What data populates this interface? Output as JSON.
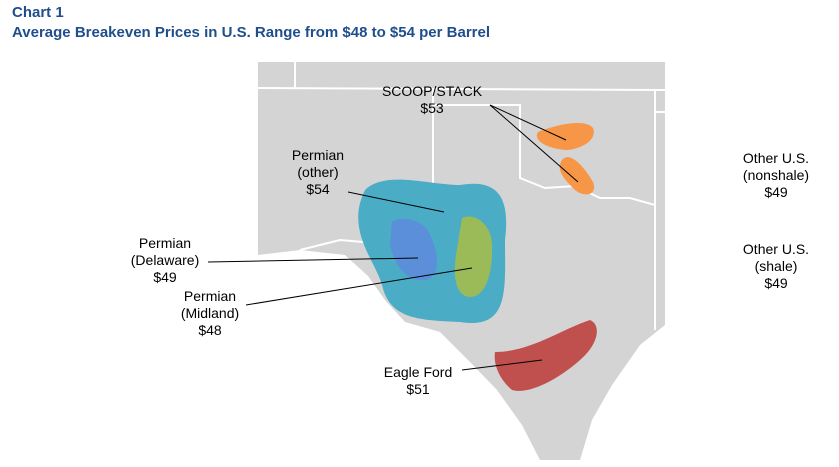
{
  "header": {
    "label": "Chart 1",
    "title": "Average Breakeven Prices in U.S. Range from $48 to $54 per Barrel"
  },
  "regions": [
    {
      "name": [
        "SCOOP/STACK"
      ],
      "price": "$53"
    },
    {
      "name": [
        "Permian",
        "(other)"
      ],
      "price": "$54"
    },
    {
      "name": [
        "Permian",
        "(Delaware)"
      ],
      "price": "$49"
    },
    {
      "name": [
        "Permian",
        "(Midland)"
      ],
      "price": "$48"
    },
    {
      "name": [
        "Eagle Ford"
      ],
      "price": "$51"
    },
    {
      "name": [
        "Other U.S.",
        "(nonshale)"
      ],
      "price": "$49"
    },
    {
      "name": [
        "Other U.S.",
        "(shale)"
      ],
      "price": "$49"
    }
  ]
}
